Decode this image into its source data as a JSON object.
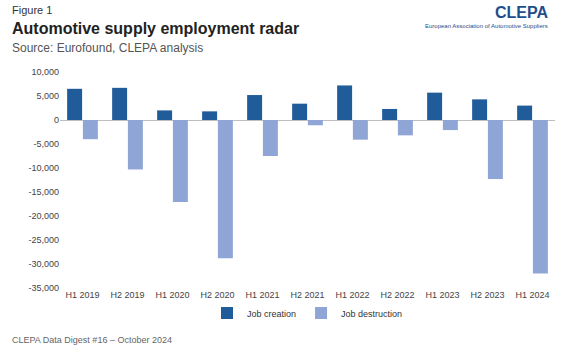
{
  "chart_data": {
    "type": "bar",
    "title": "Automotive supply employment radar",
    "subtitle": "Source: Eurofound, CLEPA analysis",
    "annotations": [
      "Figure 1",
      "CLEPA Data Digest #16 – October 2024",
      "CLEPA",
      "European Association of Automotive Suppliers"
    ],
    "categories": [
      "H1 2019",
      "H2 2019",
      "H1 2020",
      "H2 2020",
      "H1 2021",
      "H2 2021",
      "H1 2022",
      "H2 2022",
      "H1 2023",
      "H2 2023",
      "H1 2024"
    ],
    "series": [
      {
        "name": "Job creation",
        "color": "#1f5c99",
        "values": [
          6500,
          6700,
          2000,
          1800,
          5200,
          3400,
          7200,
          2300,
          5700,
          4300,
          3000
        ]
      },
      {
        "name": "Job destruction",
        "color": "#8fa5d6",
        "values": [
          -4000,
          -10300,
          -17100,
          -28800,
          -7500,
          -1100,
          -4100,
          -3200,
          -2100,
          -12300,
          -32000
        ]
      }
    ],
    "ylim": [
      -35000,
      10000
    ],
    "yticks": [
      {
        "value": 10000,
        "label": "10,000"
      },
      {
        "value": 5000,
        "label": "5,000"
      },
      0,
      {
        "value": -5000,
        "label": "-5,000"
      },
      {
        "value": -10000,
        "label": "-10,000"
      },
      {
        "value": -15000,
        "label": "-15,000"
      },
      {
        "value": -20000,
        "label": "-20,000"
      },
      {
        "value": -25000,
        "label": "-25,000"
      },
      {
        "value": -30000,
        "label": "-30,000"
      },
      {
        "value": -35000,
        "label": "-35,000"
      }
    ],
    "grid": false,
    "legend": "bottom"
  }
}
